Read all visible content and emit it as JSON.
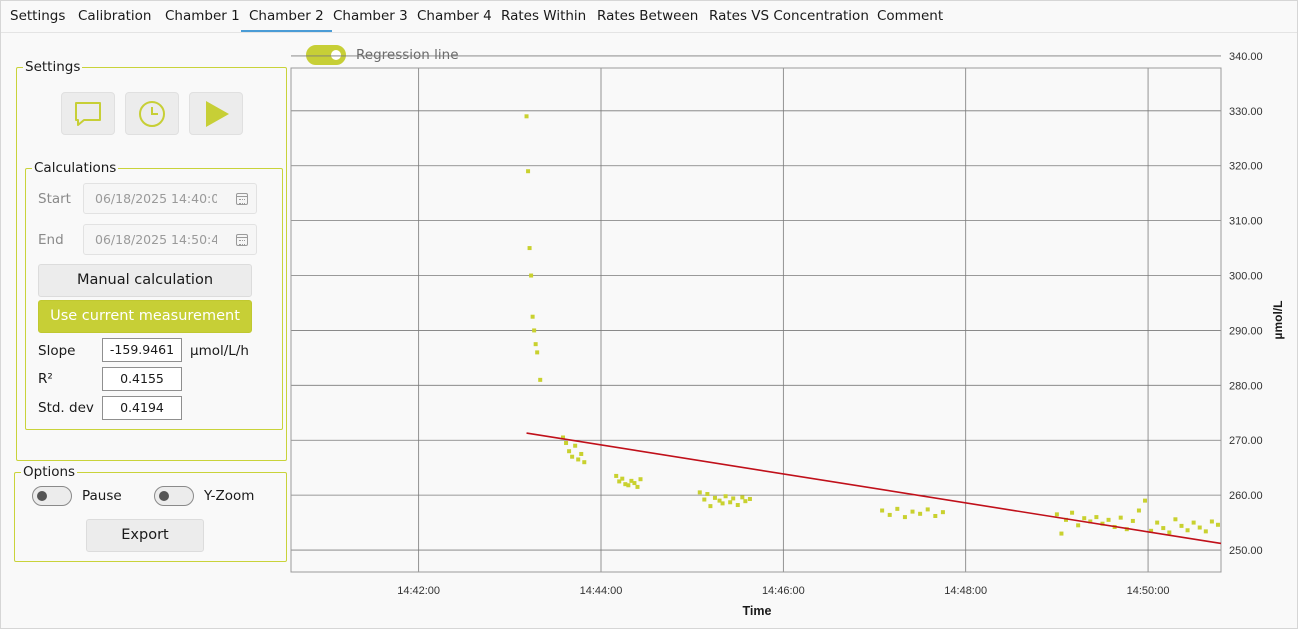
{
  "tabs": [
    "Settings",
    "Calibration",
    "Chamber 1",
    "Chamber 2",
    "Chamber 3",
    "Chamber 4",
    "Rates Within",
    "Rates Between",
    "Rates VS Concentration",
    "Comment"
  ],
  "active_tab": "Chamber 2",
  "settings": {
    "title": "Settings",
    "icons": [
      "comment-icon",
      "clock-icon",
      "play-icon"
    ]
  },
  "calculations": {
    "title": "Calculations",
    "start_label": "Start",
    "start_value": "06/18/2025 14:40:0",
    "end_label": "End",
    "end_value": "06/18/2025 14:50:4",
    "manual_button": "Manual calculation",
    "use_current_button": "Use current measurement",
    "slope_label": "Slope",
    "slope_value": "-159.9461",
    "slope_unit": "µmol/L/h",
    "r2_label": "R²",
    "r2_value": "0.4155",
    "std_label": "Std. dev",
    "std_value": "0.4194"
  },
  "options": {
    "title": "Options",
    "pause_label": "Pause",
    "pause_on": false,
    "yzoom_label": "Y-Zoom",
    "yzoom_on": false,
    "export_button": "Export"
  },
  "regression": {
    "label": "Regression line",
    "on": true
  },
  "colors": {
    "accent": "#c7cf36",
    "points": "#c9d12f",
    "regression": "#c0101a",
    "tab_underline": "#4a9cd6"
  },
  "chart_data": {
    "type": "scatter",
    "xlabel": "Time",
    "ylabel": "µmol/L",
    "x_ticks": [
      "14:42:00",
      "14:44:00",
      "14:46:00",
      "14:48:00",
      "14:50:00"
    ],
    "y_ticks": [
      "250.00",
      "260.00",
      "270.00",
      "280.00",
      "290.00",
      "300.00",
      "310.00",
      "320.00",
      "330.00",
      "340.00"
    ],
    "xlim": [
      "14:40:36",
      "14:50:48"
    ],
    "ylim": [
      246.0,
      337.8
    ],
    "grid": true,
    "series": [
      {
        "points": [
          [
            "14:43:11",
            329.0
          ],
          [
            "14:43:12",
            319.0
          ],
          [
            "14:43:13",
            305.0
          ],
          [
            "14:43:14",
            300.0
          ],
          [
            "14:43:15",
            292.5
          ],
          [
            "14:43:16",
            290.0
          ],
          [
            "14:43:17",
            287.5
          ],
          [
            "14:43:18",
            286.0
          ],
          [
            "14:43:20",
            281.0
          ],
          [
            "14:43:35",
            270.5
          ],
          [
            "14:43:37",
            269.5
          ],
          [
            "14:43:39",
            268.0
          ],
          [
            "14:43:41",
            267.0
          ],
          [
            "14:43:43",
            269.0
          ],
          [
            "14:43:45",
            266.5
          ],
          [
            "14:43:47",
            267.5
          ],
          [
            "14:43:49",
            266.0
          ],
          [
            "14:44:10",
            263.5
          ],
          [
            "14:44:12",
            262.5
          ],
          [
            "14:44:14",
            263.0
          ],
          [
            "14:44:16",
            262.0
          ],
          [
            "14:44:18",
            261.8
          ],
          [
            "14:44:20",
            262.6
          ],
          [
            "14:44:22",
            262.2
          ],
          [
            "14:44:24",
            261.5
          ],
          [
            "14:44:26",
            262.9
          ],
          [
            "14:45:05",
            260.5
          ],
          [
            "14:45:08",
            259.2
          ],
          [
            "14:45:10",
            260.2
          ],
          [
            "14:45:12",
            258.0
          ],
          [
            "14:45:15",
            259.5
          ],
          [
            "14:45:18",
            259.0
          ],
          [
            "14:45:20",
            258.5
          ],
          [
            "14:45:22",
            259.8
          ],
          [
            "14:45:25",
            258.7
          ],
          [
            "14:45:27",
            259.4
          ],
          [
            "14:45:30",
            258.2
          ],
          [
            "14:45:33",
            259.6
          ],
          [
            "14:45:35",
            258.9
          ],
          [
            "14:45:38",
            259.3
          ],
          [
            "14:47:05",
            257.2
          ],
          [
            "14:47:10",
            256.4
          ],
          [
            "14:47:15",
            257.5
          ],
          [
            "14:47:20",
            256.0
          ],
          [
            "14:47:25",
            257.0
          ],
          [
            "14:47:30",
            256.6
          ],
          [
            "14:47:35",
            257.4
          ],
          [
            "14:47:40",
            256.2
          ],
          [
            "14:47:45",
            256.9
          ],
          [
            "14:49:00",
            256.5
          ],
          [
            "14:49:03",
            253.0
          ],
          [
            "14:49:06",
            255.5
          ],
          [
            "14:49:10",
            256.8
          ],
          [
            "14:49:14",
            254.5
          ],
          [
            "14:49:18",
            255.8
          ],
          [
            "14:49:22",
            255.2
          ],
          [
            "14:49:26",
            256.0
          ],
          [
            "14:49:30",
            254.8
          ],
          [
            "14:49:34",
            255.5
          ],
          [
            "14:49:38",
            254.2
          ],
          [
            "14:49:42",
            255.9
          ],
          [
            "14:49:46",
            253.8
          ],
          [
            "14:49:50",
            255.3
          ],
          [
            "14:49:54",
            257.2
          ],
          [
            "14:49:58",
            259.0
          ],
          [
            "14:50:02",
            253.5
          ],
          [
            "14:50:06",
            255.0
          ],
          [
            "14:50:10",
            254.0
          ],
          [
            "14:50:14",
            253.2
          ],
          [
            "14:50:18",
            255.6
          ],
          [
            "14:50:22",
            254.4
          ],
          [
            "14:50:26",
            253.6
          ],
          [
            "14:50:30",
            255.0
          ],
          [
            "14:50:34",
            254.1
          ],
          [
            "14:50:38",
            253.4
          ],
          [
            "14:50:42",
            255.2
          ],
          [
            "14:50:46",
            254.6
          ]
        ]
      }
    ],
    "regression_line": {
      "from": [
        "14:43:11",
        271.3
      ],
      "to": [
        "14:50:48",
        251.2
      ]
    }
  }
}
